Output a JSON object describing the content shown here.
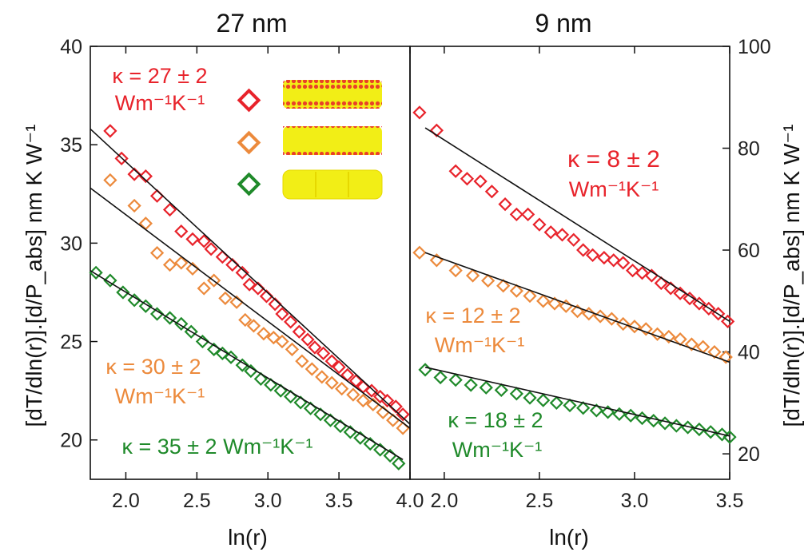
{
  "colors": {
    "red": "#e8232b",
    "orange": "#ec8a3c",
    "green": "#1f8a2a",
    "fit_line": "#111111",
    "gold_rod": "#f2ee16"
  },
  "figure": {
    "left_ylabel": "[dT/dln(r)].[d/P_abs] nm K W⁻¹",
    "right_ylabel": "[dT/dln(r)].[d/P_abs] nm K W⁻¹"
  },
  "legend_inset": {
    "icons": [
      "red-diamond-icon",
      "orange-diamond-icon",
      "green-diamond-icon"
    ],
    "rods": [
      "rod-with-two-shell-layers",
      "rod-with-thin-shell",
      "bare-rod"
    ]
  },
  "chart_data": [
    {
      "type": "scatter",
      "title": "27 nm",
      "xlabel": "ln(r)",
      "ylabel": "[dT/dln(r)].[d/P_abs] nm K W⁻¹",
      "xlim": [
        1.75,
        4.0
      ],
      "ylim": [
        18,
        40
      ],
      "xticks": [
        "2.0",
        "2.5",
        "3.0",
        "3.5",
        "4.0"
      ],
      "yticks": [
        "20",
        "25",
        "30",
        "35",
        "40"
      ],
      "grid": false,
      "series": [
        {
          "color": "red",
          "annotation": [
            "κ = 27 ± 2",
            "Wm⁻¹K⁻¹"
          ],
          "points": [
            [
              1.89,
              35.7
            ],
            [
              1.97,
              34.3
            ],
            [
              2.06,
              33.5
            ],
            [
              2.14,
              33.4
            ],
            [
              2.22,
              32.4
            ],
            [
              2.31,
              31.7
            ],
            [
              2.39,
              30.6
            ],
            [
              2.47,
              30.2
            ],
            [
              2.55,
              30.1
            ],
            [
              2.6,
              29.7
            ],
            [
              2.68,
              29.3
            ],
            [
              2.75,
              28.9
            ],
            [
              2.82,
              28.5
            ],
            [
              2.87,
              27.9
            ],
            [
              2.93,
              27.7
            ],
            [
              2.99,
              27.3
            ],
            [
              3.05,
              26.9
            ],
            [
              3.1,
              26.4
            ],
            [
              3.16,
              26.0
            ],
            [
              3.22,
              25.5
            ],
            [
              3.28,
              25.1
            ],
            [
              3.33,
              24.7
            ],
            [
              3.39,
              24.4
            ],
            [
              3.45,
              24.0
            ],
            [
              3.5,
              23.7
            ],
            [
              3.56,
              23.3
            ],
            [
              3.62,
              23.0
            ],
            [
              3.67,
              22.7
            ],
            [
              3.73,
              22.5
            ],
            [
              3.79,
              22.2
            ],
            [
              3.84,
              22.0
            ],
            [
              3.9,
              21.7
            ],
            [
              3.95,
              21.3
            ]
          ],
          "fit": [
            [
              1.75,
              35.8
            ],
            [
              4.0,
              20.8
            ]
          ]
        },
        {
          "color": "orange",
          "annotation": [
            "κ = 30 ± 2",
            "Wm⁻¹K⁻¹"
          ],
          "points": [
            [
              1.89,
              33.2
            ],
            [
              2.06,
              31.9
            ],
            [
              2.14,
              31.0
            ],
            [
              2.22,
              29.5
            ],
            [
              2.31,
              28.9
            ],
            [
              2.39,
              29.0
            ],
            [
              2.47,
              28.7
            ],
            [
              2.55,
              27.7
            ],
            [
              2.62,
              28.1
            ],
            [
              2.7,
              27.2
            ],
            [
              2.78,
              27.0
            ],
            [
              2.84,
              26.1
            ],
            [
              2.9,
              25.8
            ],
            [
              2.97,
              25.4
            ],
            [
              3.04,
              25.2
            ],
            [
              3.1,
              25.0
            ],
            [
              3.17,
              24.6
            ],
            [
              3.24,
              24.0
            ],
            [
              3.31,
              23.6
            ],
            [
              3.38,
              23.2
            ],
            [
              3.45,
              22.9
            ],
            [
              3.52,
              22.6
            ],
            [
              3.6,
              22.3
            ],
            [
              3.67,
              22.0
            ],
            [
              3.74,
              21.8
            ],
            [
              3.81,
              21.4
            ],
            [
              3.88,
              21.0
            ],
            [
              3.95,
              20.6
            ]
          ],
          "fit": [
            [
              1.75,
              32.8
            ],
            [
              4.0,
              20.6
            ]
          ]
        },
        {
          "color": "green",
          "annotation": [
            "κ = 35 ± 2 Wm⁻¹K⁻¹"
          ],
          "points": [
            [
              1.79,
              28.5
            ],
            [
              1.89,
              28.1
            ],
            [
              1.98,
              27.5
            ],
            [
              2.06,
              27.1
            ],
            [
              2.14,
              26.8
            ],
            [
              2.22,
              26.4
            ],
            [
              2.31,
              26.2
            ],
            [
              2.39,
              25.9
            ],
            [
              2.46,
              25.5
            ],
            [
              2.54,
              25.0
            ],
            [
              2.62,
              24.6
            ],
            [
              2.68,
              24.4
            ],
            [
              2.74,
              24.2
            ],
            [
              2.82,
              23.8
            ],
            [
              2.88,
              23.5
            ],
            [
              2.95,
              23.1
            ],
            [
              3.02,
              22.8
            ],
            [
              3.09,
              22.5
            ],
            [
              3.16,
              22.2
            ],
            [
              3.23,
              21.9
            ],
            [
              3.3,
              21.6
            ],
            [
              3.37,
              21.3
            ],
            [
              3.44,
              21.0
            ],
            [
              3.51,
              20.7
            ],
            [
              3.58,
              20.4
            ],
            [
              3.65,
              20.1
            ],
            [
              3.72,
              19.8
            ],
            [
              3.79,
              19.5
            ],
            [
              3.86,
              19.2
            ],
            [
              3.92,
              18.8
            ]
          ],
          "fit": [
            [
              1.75,
              28.6
            ],
            [
              3.95,
              19.0
            ]
          ]
        }
      ]
    },
    {
      "type": "scatter",
      "title": "9 nm",
      "xlabel": "ln(r)",
      "ylabel": "[dT/dln(r)].[d/P_abs] nm K W⁻¹",
      "xlim": [
        1.82,
        3.5
      ],
      "ylim": [
        15,
        100
      ],
      "xticks": [
        "2.0",
        "2.5",
        "3.0",
        "3.5"
      ],
      "yticks": [
        "20",
        "40",
        "60",
        "80",
        "100"
      ],
      "grid": false,
      "series": [
        {
          "color": "red",
          "annotation": [
            "κ = 8 ± 2",
            "Wm⁻¹K⁻¹"
          ],
          "points": [
            [
              1.87,
              87.0
            ],
            [
              1.96,
              83.5
            ],
            [
              2.06,
              75.5
            ],
            [
              2.12,
              74.0
            ],
            [
              2.19,
              73.5
            ],
            [
              2.25,
              71.5
            ],
            [
              2.32,
              69.0
            ],
            [
              2.38,
              67.0
            ],
            [
              2.44,
              67.0
            ],
            [
              2.5,
              65.0
            ],
            [
              2.56,
              63.5
            ],
            [
              2.62,
              63.0
            ],
            [
              2.68,
              62.0
            ],
            [
              2.73,
              60.0
            ],
            [
              2.78,
              59.0
            ],
            [
              2.84,
              58.5
            ],
            [
              2.89,
              58.0
            ],
            [
              2.94,
              57.5
            ],
            [
              2.99,
              56.0
            ],
            [
              3.04,
              55.5
            ],
            [
              3.09,
              55.0
            ],
            [
              3.14,
              53.5
            ],
            [
              3.19,
              52.5
            ],
            [
              3.24,
              51.5
            ],
            [
              3.29,
              50.5
            ],
            [
              3.34,
              49.5
            ],
            [
              3.39,
              48.5
            ],
            [
              3.44,
              47.5
            ],
            [
              3.49,
              46.0
            ]
          ],
          "fit": [
            [
              1.9,
              84.0
            ],
            [
              3.5,
              46.0
            ]
          ]
        },
        {
          "color": "orange",
          "annotation": [
            "κ = 12 ± 2",
            "Wm⁻¹K⁻¹"
          ],
          "points": [
            [
              1.87,
              59.5
            ],
            [
              1.96,
              58.0
            ],
            [
              2.06,
              56.0
            ],
            [
              2.15,
              55.0
            ],
            [
              2.23,
              54.0
            ],
            [
              2.31,
              53.0
            ],
            [
              2.38,
              52.0
            ],
            [
              2.45,
              51.0
            ],
            [
              2.52,
              50.0
            ],
            [
              2.58,
              49.5
            ],
            [
              2.64,
              49.0
            ],
            [
              2.7,
              48.0
            ],
            [
              2.76,
              47.5
            ],
            [
              2.82,
              47.0
            ],
            [
              2.88,
              46.5
            ],
            [
              2.94,
              45.5
            ],
            [
              3.0,
              45.0
            ],
            [
              3.06,
              44.5
            ],
            [
              3.12,
              43.5
            ],
            [
              3.18,
              43.0
            ],
            [
              3.24,
              42.5
            ],
            [
              3.3,
              41.5
            ],
            [
              3.36,
              41.0
            ],
            [
              3.42,
              40.0
            ],
            [
              3.48,
              39.0
            ]
          ],
          "fit": [
            [
              1.9,
              59.5
            ],
            [
              3.5,
              38.0
            ]
          ]
        },
        {
          "color": "green",
          "annotation": [
            "κ = 18 ± 2",
            "Wm⁻¹K⁻¹"
          ],
          "points": [
            [
              1.9,
              36.5
            ],
            [
              1.98,
              35.0
            ],
            [
              2.06,
              34.5
            ],
            [
              2.14,
              33.5
            ],
            [
              2.22,
              33.0
            ],
            [
              2.3,
              32.5
            ],
            [
              2.38,
              31.8
            ],
            [
              2.45,
              31.0
            ],
            [
              2.52,
              30.5
            ],
            [
              2.59,
              30.0
            ],
            [
              2.66,
              29.5
            ],
            [
              2.73,
              29.0
            ],
            [
              2.8,
              28.5
            ],
            [
              2.86,
              28.2
            ],
            [
              2.92,
              27.8
            ],
            [
              2.98,
              27.5
            ],
            [
              3.04,
              27.0
            ],
            [
              3.1,
              26.5
            ],
            [
              3.16,
              26.0
            ],
            [
              3.22,
              25.5
            ],
            [
              3.28,
              25.2
            ],
            [
              3.34,
              24.8
            ],
            [
              3.4,
              24.3
            ],
            [
              3.46,
              23.8
            ],
            [
              3.5,
              23.3
            ]
          ],
          "fit": [
            [
              1.9,
              37.0
            ],
            [
              3.5,
              23.5
            ]
          ]
        }
      ]
    }
  ]
}
